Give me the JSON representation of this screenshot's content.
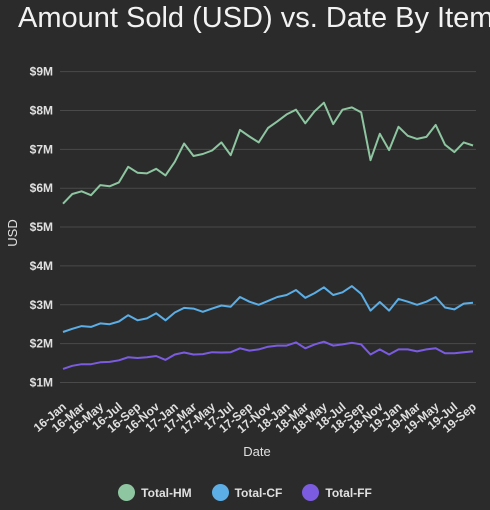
{
  "chart_data": {
    "type": "line",
    "title": "Amount Sold (USD) vs. Date By Item",
    "xlabel": "Date",
    "ylabel": "USD",
    "ylim": [
      0.6,
      9.3
    ],
    "yticks": [
      "$1M",
      "$2M",
      "$3M",
      "$4M",
      "$5M",
      "$6M",
      "$7M",
      "$8M",
      "$9M"
    ],
    "ytick_values": [
      1,
      2,
      3,
      4,
      5,
      6,
      7,
      8,
      9
    ],
    "grid": true,
    "legend_position": "bottom",
    "xtick_labels": [
      "16-Jan",
      "16-Mar",
      "16-May",
      "16-Jul",
      "16-Sep",
      "16-Nov",
      "17-Jan",
      "17-Mar",
      "17-May",
      "17-Jul",
      "17-Sep",
      "17-Nov",
      "18-Jan",
      "18-Mar",
      "18-May",
      "18-Jul",
      "18-Sep",
      "18-Nov",
      "19-Jan",
      "19-Mar",
      "19-May",
      "19-Jul",
      "19-Sep"
    ],
    "x": [
      "16-Jan",
      "16-Feb",
      "16-Mar",
      "16-Apr",
      "16-May",
      "16-Jun",
      "16-Jul",
      "16-Aug",
      "16-Sep",
      "16-Oct",
      "16-Nov",
      "16-Dec",
      "17-Jan",
      "17-Feb",
      "17-Mar",
      "17-Apr",
      "17-May",
      "17-Jun",
      "17-Jul",
      "17-Aug",
      "17-Sep",
      "17-Oct",
      "17-Nov",
      "17-Dec",
      "18-Jan",
      "18-Feb",
      "18-Mar",
      "18-Apr",
      "18-May",
      "18-Jun",
      "18-Jul",
      "18-Aug",
      "18-Sep",
      "18-Oct",
      "18-Nov",
      "18-Dec",
      "19-Jan",
      "19-Feb",
      "19-Mar",
      "19-Apr",
      "19-May",
      "19-Jun",
      "19-Jul",
      "19-Aug",
      "19-Sep"
    ],
    "series": [
      {
        "name": "Total-HM",
        "color": "#8ec6a1",
        "values": [
          5.6,
          5.85,
          5.92,
          5.82,
          6.08,
          6.05,
          6.15,
          6.55,
          6.4,
          6.38,
          6.5,
          6.33,
          6.68,
          7.15,
          6.83,
          6.88,
          6.97,
          7.18,
          6.85,
          7.5,
          7.33,
          7.18,
          7.55,
          7.72,
          7.9,
          8.02,
          7.67,
          7.98,
          8.2,
          7.65,
          8.02,
          8.08,
          7.95,
          6.72,
          7.4,
          6.98,
          7.58,
          7.35,
          7.27,
          7.32,
          7.63,
          7.12,
          6.93,
          7.18,
          7.1
        ]
      },
      {
        "name": "Total-CF",
        "color": "#5baee6",
        "values": [
          2.3,
          2.38,
          2.45,
          2.43,
          2.52,
          2.5,
          2.57,
          2.73,
          2.6,
          2.65,
          2.78,
          2.6,
          2.8,
          2.92,
          2.9,
          2.82,
          2.9,
          2.98,
          2.95,
          3.2,
          3.08,
          3.0,
          3.1,
          3.2,
          3.25,
          3.38,
          3.18,
          3.3,
          3.45,
          3.25,
          3.32,
          3.48,
          3.28,
          2.85,
          3.07,
          2.85,
          3.15,
          3.08,
          3.0,
          3.08,
          3.2,
          2.93,
          2.88,
          3.03,
          3.05
        ]
      },
      {
        "name": "Total-FF",
        "color": "#7b5ce0",
        "values": [
          1.35,
          1.43,
          1.47,
          1.47,
          1.52,
          1.53,
          1.57,
          1.65,
          1.63,
          1.65,
          1.68,
          1.58,
          1.72,
          1.77,
          1.72,
          1.73,
          1.78,
          1.77,
          1.78,
          1.88,
          1.82,
          1.85,
          1.92,
          1.95,
          1.95,
          2.03,
          1.88,
          1.98,
          2.05,
          1.95,
          1.98,
          2.02,
          1.98,
          1.72,
          1.85,
          1.72,
          1.85,
          1.85,
          1.8,
          1.85,
          1.88,
          1.75,
          1.75,
          1.78,
          1.8
        ]
      }
    ]
  }
}
